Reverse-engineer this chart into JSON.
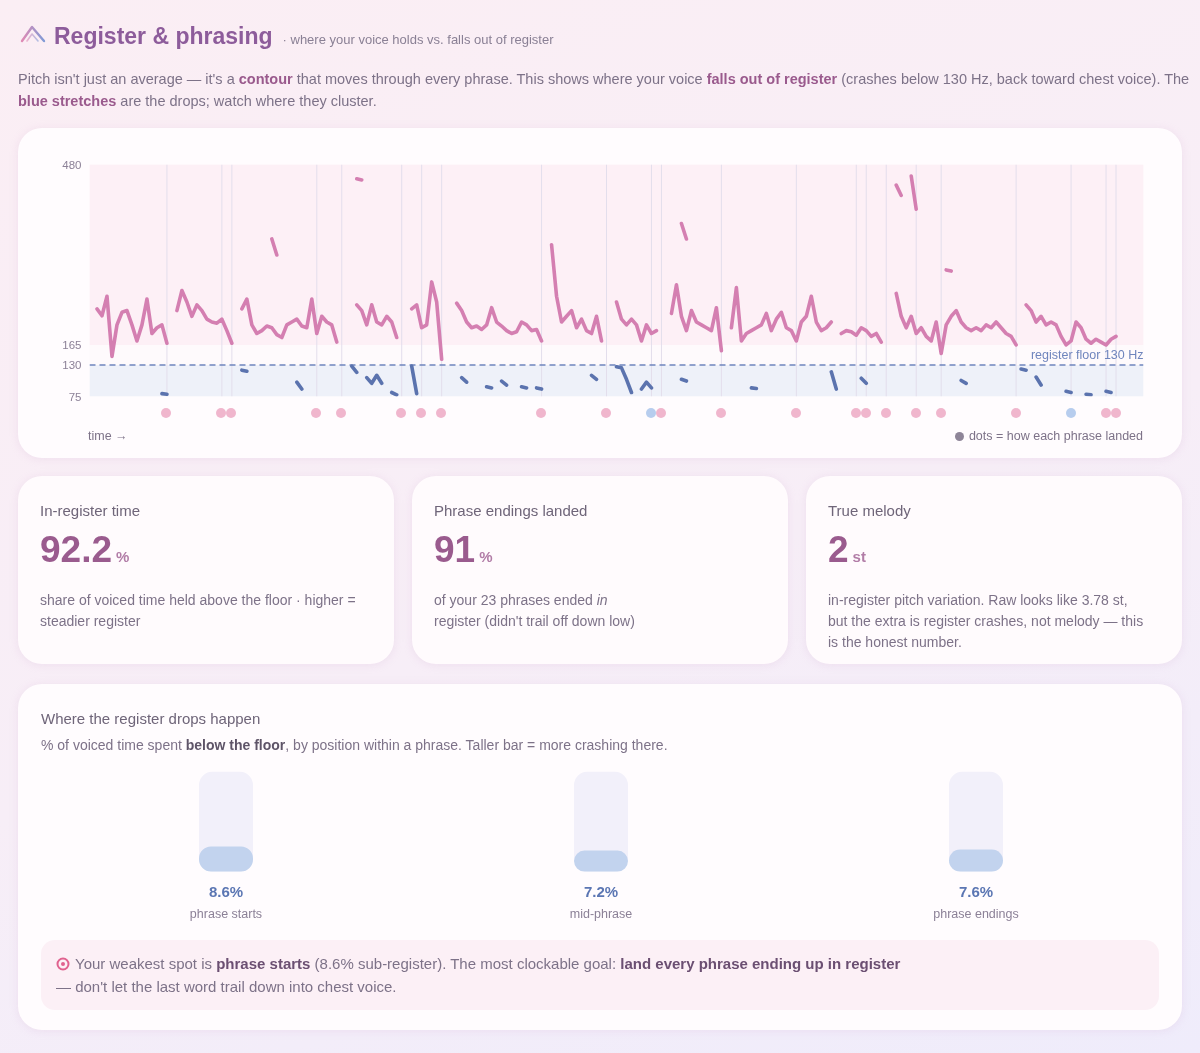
{
  "chart_data": [
    {
      "type": "line",
      "title": "Register & phrasing",
      "subtitle": "· where your voice holds vs. falls out of register",
      "annotations": [
        "Pitch isn't just an average — it's a ",
        "contour",
        " that moves through every phrase. This shows where your voice ",
        "falls out of register",
        " (crashes below 130 Hz, back toward chest voice). The ",
        "blue stretches",
        " are the drops; watch where they cluster."
      ],
      "categories": [
        null,
        null,
        null,
        null,
        null,
        null,
        null,
        null,
        null,
        null,
        null,
        null,
        null,
        null,
        null,
        null,
        null,
        null,
        null,
        null,
        null,
        null,
        null,
        null,
        null,
        null,
        null,
        null,
        null,
        null,
        null,
        null,
        null,
        null,
        null,
        null,
        null,
        null,
        null,
        null,
        null,
        null,
        null,
        null,
        null,
        null,
        null,
        null,
        null,
        null,
        null,
        null,
        null,
        null,
        null,
        null,
        null,
        null,
        null,
        null,
        null,
        null,
        null,
        null,
        null,
        null,
        null,
        null,
        null,
        null,
        null,
        null,
        null,
        null,
        null,
        null,
        null,
        null,
        null,
        null,
        null,
        null,
        null,
        null,
        null,
        null,
        null,
        null,
        null,
        null,
        null,
        null,
        null,
        null,
        null,
        null,
        null,
        null,
        null,
        null,
        null,
        null,
        null,
        null,
        null,
        null,
        null,
        null,
        null,
        null,
        null,
        null,
        null,
        null,
        null,
        null,
        null,
        null,
        null,
        null,
        null,
        null,
        null,
        null,
        null,
        null,
        null,
        null,
        null,
        null,
        null,
        null,
        null,
        null,
        null,
        null,
        null,
        null,
        null,
        null,
        null,
        null,
        null,
        null,
        null,
        null,
        null,
        null,
        null,
        null,
        null,
        null,
        null,
        null,
        null,
        null,
        null,
        null,
        null,
        null,
        null,
        null,
        null,
        null,
        null,
        null,
        null,
        null,
        null,
        null,
        null,
        null,
        null,
        null,
        null,
        null,
        null,
        null,
        null,
        null,
        null,
        null,
        null,
        null,
        null,
        null,
        null,
        null,
        null,
        null,
        null,
        null,
        null,
        null,
        null,
        null,
        null,
        null,
        null,
        null,
        null,
        null,
        null,
        null,
        null,
        null,
        null,
        null,
        null,
        null,
        null
      ],
      "series": [
        {
          "color": "#d47fb1",
          "values": [
            null,
            228,
            216,
            250,
            145,
            200,
            222,
            225,
            200,
            172,
            200,
            245,
            185,
            195,
            200,
            168,
            null,
            225,
            260,
            240,
            215,
            235,
            225,
            210,
            205,
            203,
            210,
            190,
            168,
            null,
            228,
            245,
            200,
            185,
            190,
            198,
            195,
            183,
            178,
            200,
            205,
            210,
            198,
            195,
            245,
            185,
            215,
            205,
            200,
            170,
            null,
            null,
            null,
            235,
            225,
            200,
            235,
            205,
            200,
            215,
            205,
            178,
            null,
            null,
            228,
            235,
            195,
            200,
            275,
            240,
            140,
            null,
            null,
            238,
            225,
            205,
            195,
            198,
            192,
            200,
            230,
            205,
            198,
            190,
            185,
            188,
            205,
            200,
            190,
            192,
            172,
            null,
            340,
            250,
            205,
            215,
            225,
            195,
            210,
            190,
            185,
            215,
            172,
            null,
            null,
            240,
            210,
            200,
            210,
            200,
            172,
            200,
            185,
            190,
            null,
            null,
            220,
            270,
            215,
            190,
            225,
            205,
            200,
            195,
            190,
            230,
            155,
            null,
            195,
            265,
            172,
            185,
            190,
            195,
            200,
            220,
            190,
            210,
            222,
            195,
            190,
            172,
            205,
            215,
            250,
            205,
            190,
            195,
            205,
            null,
            185,
            190,
            188,
            182,
            195,
            190,
            180,
            185,
            170,
            null,
            null,
            255,
            215,
            195,
            215,
            185,
            195,
            180,
            172,
            205,
            150,
            200,
            215,
            225,
            205,
            195,
            190,
            195,
            190,
            200,
            195,
            205,
            195,
            185,
            180,
            165,
            null,
            235,
            225,
            205,
            215,
            200,
            205,
            200,
            180,
            165,
            172,
            205,
            195,
            175,
            168,
            175,
            170,
            165,
            175,
            180,
            null,
            null,
            null,
            null,
            null
          ]
        },
        {
          "color": "#d47fb1",
          "values": [
            null,
            null,
            null,
            null,
            null,
            null,
            null,
            null,
            null,
            null,
            null,
            null,
            null,
            null,
            null,
            null,
            null,
            null,
            null,
            null,
            null,
            null,
            null,
            null,
            null,
            null,
            null,
            null,
            null,
            null,
            null,
            null,
            null,
            null,
            null,
            null,
            350,
            322,
            null,
            null,
            null,
            null,
            null,
            null,
            null,
            null,
            null,
            null,
            null,
            null,
            null,
            null,
            null,
            455,
            453,
            null,
            null,
            null,
            null,
            null,
            null,
            null,
            null,
            null,
            null,
            null,
            null,
            null,
            null,
            null,
            null,
            null,
            null,
            null,
            null,
            null,
            null,
            null,
            null,
            null,
            null,
            null,
            null,
            null,
            null,
            null,
            null,
            null,
            null,
            null,
            null,
            null,
            null,
            null,
            null,
            null,
            null,
            null,
            null,
            null,
            null,
            null,
            null,
            null,
            null,
            null,
            null,
            null,
            null,
            null,
            null,
            null,
            null,
            null,
            null,
            null,
            null,
            null,
            377,
            350,
            null,
            null,
            null,
            null,
            null,
            null,
            null,
            null,
            null,
            null,
            null,
            null,
            null,
            null,
            null,
            null,
            null,
            null,
            null,
            null,
            null,
            null,
            null,
            null,
            null,
            null,
            null,
            null,
            null,
            null,
            null,
            null,
            null,
            null,
            null,
            null,
            null,
            null,
            null,
            null,
            null,
            444,
            426,
            null,
            460,
            402,
            null,
            null,
            null,
            null,
            null,
            296,
            294,
            null,
            null,
            null,
            null,
            null,
            null,
            null,
            null,
            null,
            null,
            null,
            null,
            null,
            null,
            null,
            null,
            null,
            null,
            null,
            null,
            null,
            null,
            null,
            null,
            null,
            null,
            null,
            null,
            null,
            null,
            null,
            null,
            null,
            null,
            null,
            null,
            null,
            null
          ]
        },
        {
          "color": "#5b73ae",
          "values": [
            null,
            null,
            null,
            null,
            null,
            null,
            null,
            null,
            null,
            null,
            null,
            null,
            null,
            null,
            80,
            79,
            null,
            null,
            null,
            null,
            null,
            null,
            null,
            null,
            null,
            null,
            null,
            null,
            null,
            null,
            121,
            119,
            null,
            null,
            null,
            null,
            null,
            null,
            null,
            null,
            null,
            100,
            88,
            null,
            null,
            null,
            null,
            null,
            null,
            null,
            null,
            null,
            128,
            117,
            null,
            108,
            98,
            112,
            98,
            null,
            82,
            78,
            null,
            null,
            128,
            80,
            null,
            null,
            null,
            null,
            null,
            null,
            null,
            null,
            108,
            100,
            null,
            null,
            null,
            92,
            90,
            null,
            102,
            95,
            null,
            null,
            92,
            90,
            null,
            90,
            88,
            null,
            null,
            null,
            null,
            null,
            null,
            null,
            null,
            null,
            112,
            105,
            null,
            null,
            null,
            127,
            125,
            105,
            82,
            null,
            88,
            100,
            90,
            null,
            null,
            null,
            null,
            null,
            105,
            102,
            null,
            null,
            null,
            null,
            null,
            null,
            null,
            null,
            null,
            null,
            null,
            null,
            90,
            89,
            null,
            null,
            null,
            null,
            null,
            null,
            null,
            null,
            null,
            null,
            null,
            null,
            null,
            null,
            118,
            88,
            null,
            null,
            null,
            null,
            107,
            98,
            null,
            null,
            null,
            null,
            null,
            null,
            null,
            null,
            null,
            null,
            null,
            null,
            null,
            null,
            null,
            null,
            null,
            null,
            103,
            98,
            null,
            null,
            null,
            null,
            null,
            null,
            null,
            null,
            null,
            null,
            123,
            121,
            null,
            109,
            95,
            null,
            null,
            null,
            null,
            84,
            82,
            null,
            null,
            79,
            78,
            null,
            null,
            84,
            82,
            null,
            null,
            null,
            null,
            null,
            null
          ]
        }
      ],
      "ylim": [
        75,
        480
      ],
      "yticks": [
        75,
        130,
        165,
        480
      ],
      "bands": [
        {
          "axis": "y",
          "from": 165,
          "to": 480,
          "color": "#fdf0f6"
        },
        {
          "axis": "y",
          "from": 75,
          "to": 130,
          "color": "#eef1f9"
        }
      ],
      "ref_lines": [
        {
          "axis": "y",
          "value": 130,
          "label": "register floor 130 Hz",
          "color": "#6f85bd",
          "line_style": "dashed"
        }
      ]
    },
    {
      "type": "other",
      "xlabel": "time →",
      "annotations": [
        "dots = how each phrase landed"
      ],
      "categories": [
        null,
        null,
        null,
        null,
        null,
        null,
        null,
        null,
        null,
        null,
        null,
        null,
        null,
        null,
        null,
        null,
        null,
        null,
        null,
        null,
        null,
        null,
        null,
        null,
        null,
        null,
        null,
        null,
        null,
        null,
        null,
        null,
        null,
        null,
        null,
        null,
        null,
        null,
        null,
        null,
        null,
        null,
        null,
        null,
        null,
        null,
        null,
        null,
        null,
        null,
        null,
        null,
        null,
        null,
        null,
        null,
        null,
        null,
        null,
        null,
        null,
        null,
        null,
        null,
        null,
        null,
        null,
        null,
        null,
        null,
        null,
        null,
        null,
        null,
        null,
        null,
        null,
        null,
        null,
        null,
        null,
        null,
        null,
        null,
        null,
        null,
        null,
        null,
        null,
        null,
        null,
        null,
        null,
        null,
        null,
        null,
        null,
        null,
        null,
        null,
        null,
        null,
        null,
        null,
        null,
        null,
        null,
        null,
        null,
        null,
        null,
        null,
        null,
        null,
        null,
        null,
        null,
        null,
        null,
        null,
        null,
        null,
        null,
        null,
        null,
        null,
        null,
        null,
        null,
        null,
        null,
        null,
        null,
        null,
        null,
        null,
        null,
        null,
        null,
        null,
        null,
        null,
        null,
        null,
        null,
        null,
        null,
        null,
        null,
        null,
        null,
        null,
        null,
        null,
        null,
        null,
        null,
        null,
        null,
        null,
        null,
        null,
        null,
        null,
        null,
        null,
        null,
        null,
        null,
        null,
        null,
        null,
        null,
        null,
        null,
        null,
        null,
        null,
        null,
        null,
        null,
        null,
        null,
        null,
        null,
        null,
        null,
        null,
        null,
        null,
        null,
        null,
        null,
        null,
        null,
        null,
        null,
        null,
        null,
        null,
        null,
        null,
        null,
        null,
        null,
        null,
        null,
        null,
        null,
        null,
        null
      ],
      "colors": [
        null,
        null,
        null,
        null,
        null,
        null,
        null,
        null,
        null,
        null,
        null,
        null,
        null,
        null,
        null,
        "#f0b6cd",
        null,
        null,
        null,
        null,
        null,
        null,
        null,
        null,
        null,
        null,
        "#f0b6cd",
        null,
        "#f0b6cd",
        null,
        null,
        null,
        null,
        null,
        null,
        null,
        null,
        null,
        null,
        null,
        null,
        null,
        null,
        null,
        null,
        "#f0b6cd",
        null,
        null,
        null,
        null,
        "#f0b6cd",
        null,
        null,
        null,
        null,
        null,
        null,
        null,
        null,
        null,
        null,
        null,
        "#f0b6cd",
        null,
        null,
        null,
        "#f0b6cd",
        null,
        null,
        null,
        "#f0b6cd",
        null,
        null,
        null,
        null,
        null,
        null,
        null,
        null,
        null,
        null,
        null,
        null,
        null,
        null,
        null,
        null,
        null,
        null,
        null,
        "#f0b6cd",
        null,
        null,
        null,
        null,
        null,
        null,
        null,
        null,
        null,
        null,
        null,
        null,
        "#f0b6cd",
        null,
        null,
        null,
        null,
        null,
        null,
        null,
        null,
        "#b7cdee",
        null,
        "#f0b6cd",
        null,
        null,
        null,
        null,
        null,
        null,
        null,
        null,
        null,
        null,
        null,
        "#f0b6cd",
        null,
        null,
        null,
        null,
        null,
        null,
        null,
        null,
        null,
        null,
        null,
        null,
        null,
        null,
        "#f0b6cd",
        null,
        null,
        null,
        null,
        null,
        null,
        null,
        null,
        null,
        null,
        null,
        "#f0b6cd",
        null,
        "#f0b6cd",
        null,
        null,
        null,
        "#f0b6cd",
        null,
        null,
        null,
        null,
        null,
        "#f0b6cd",
        null,
        null,
        null,
        null,
        "#f0b6cd",
        null,
        null,
        null,
        null,
        null,
        null,
        null,
        null,
        null,
        null,
        null,
        null,
        null,
        null,
        "#f0b6cd",
        null,
        null,
        null,
        null,
        null,
        null,
        null,
        null,
        null,
        null,
        "#b7cdee",
        null,
        null,
        null,
        null,
        null,
        null,
        "#f0b6cd",
        null,
        "#f0b6cd",
        null,
        null,
        null,
        null,
        null
      ]
    },
    {
      "type": "other",
      "title": "In-register time",
      "annotations": [
        "92.2",
        "%",
        "share of voiced time held above the floor · higher = steadier register"
      ]
    },
    {
      "type": "other",
      "title": "Phrase endings landed",
      "annotations": [
        "91",
        "%",
        "of your 23 phrases ended ",
        "in",
        " register (didn't trail off down low)"
      ]
    },
    {
      "type": "other",
      "title": "True melody",
      "annotations": [
        "2",
        "st",
        "in-register pitch variation. Raw looks like 3.78 st, but the extra is register crashes, not melody — this is the honest number."
      ]
    },
    {
      "type": "bar",
      "title": "Where the register drops happen",
      "annotations": [
        "% of voiced time spent ",
        "below the floor",
        ", by position within a phrase. Taller bar = more crashing there."
      ],
      "categories": [
        "phrase starts",
        "mid-phrase",
        "phrase endings"
      ],
      "values": [
        8.6,
        7.2,
        7.6
      ],
      "value_labels": [
        "8.6%",
        "7.2%",
        "7.6%"
      ],
      "color": "#c2d3ee"
    },
    {
      "type": "other",
      "annotations": [
        "Your weakest spot is ",
        "phrase starts",
        " (8.6% sub-register). The most clockable goal: ",
        "land every phrase ending up in register",
        " — don't let the last word trail down into chest voice."
      ]
    }
  ]
}
